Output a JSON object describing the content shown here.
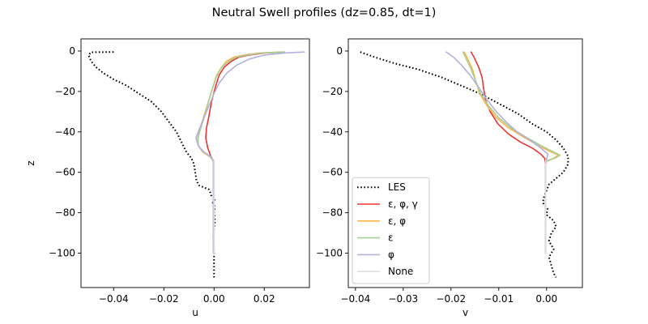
{
  "figure": {
    "title": "Neutral Swell profiles (dz=0.85, dt=1)"
  },
  "chart_data": [
    {
      "type": "line",
      "xlabel": "u",
      "ylabel": "z",
      "xlim": [
        -0.053,
        0.038
      ],
      "ylim": [
        -117,
        6
      ],
      "xticks": [
        -0.04,
        -0.02,
        0.0,
        0.02
      ],
      "xtick_labels": [
        "−0.04",
        "−0.02",
        "0.00",
        "0.02"
      ],
      "yticks": [
        0,
        -20,
        -40,
        -60,
        -80,
        -100
      ],
      "ytick_labels": [
        "0",
        "−20",
        "−40",
        "−60",
        "−80",
        "−100"
      ],
      "grid": false,
      "series": [
        {
          "name": "LES",
          "color": "#000000",
          "style": "dotted",
          "points": [
            [
              -0.04,
              -0.5
            ],
            [
              -0.049,
              -0.6
            ],
            [
              -0.05,
              -2
            ],
            [
              -0.049,
              -5
            ],
            [
              -0.047,
              -8
            ],
            [
              -0.044,
              -11
            ],
            [
              -0.04,
              -14
            ],
            [
              -0.035,
              -17
            ],
            [
              -0.03,
              -21
            ],
            [
              -0.025,
              -25
            ],
            [
              -0.021,
              -30
            ],
            [
              -0.018,
              -35
            ],
            [
              -0.015,
              -40
            ],
            [
              -0.013,
              -45
            ],
            [
              -0.011,
              -50
            ],
            [
              -0.009,
              -53
            ],
            [
              -0.008,
              -56
            ],
            [
              -0.0075,
              -60
            ],
            [
              -0.007,
              -64
            ],
            [
              -0.006,
              -66.5
            ],
            [
              -0.004,
              -67.5
            ],
            [
              -0.003,
              -68
            ],
            [
              -0.002,
              -68.5
            ],
            [
              -0.0015,
              -70
            ],
            [
              -0.001,
              -72
            ],
            [
              0.0005,
              -73
            ],
            [
              -0.0005,
              -75
            ],
            [
              0.0003,
              -77
            ],
            [
              0.0,
              -80
            ],
            [
              0.0004,
              -84
            ],
            [
              0.0,
              -88
            ],
            [
              -0.0003,
              -92
            ],
            [
              -0.0001,
              -96
            ],
            [
              0.0,
              -100
            ],
            [
              0.0,
              -104
            ],
            [
              0.0,
              -108
            ],
            [
              0.0,
              -112
            ]
          ]
        },
        {
          "name": "ε, φ, γ",
          "color": "#ee3333",
          "style": "solid",
          "points": [
            [
              0.028,
              -0.5
            ],
            [
              0.02,
              -1
            ],
            [
              0.014,
              -2
            ],
            [
              0.01,
              -3
            ],
            [
              0.007,
              -5
            ],
            [
              0.004,
              -8
            ],
            [
              0.002,
              -12
            ],
            [
              0.0005,
              -18
            ],
            [
              -0.001,
              -25
            ],
            [
              -0.002,
              -32
            ],
            [
              -0.003,
              -38
            ],
            [
              -0.0033,
              -43
            ],
            [
              -0.0025,
              -48
            ],
            [
              -0.0013,
              -52
            ],
            [
              0.0,
              -55
            ],
            [
              0.0,
              -65
            ],
            [
              0.0,
              -80
            ],
            [
              0.0,
              -100
            ]
          ]
        },
        {
          "name": "ε, φ",
          "color": "#fbb746",
          "style": "solid",
          "points": [
            [
              0.027,
              -0.5
            ],
            [
              0.018,
              -1
            ],
            [
              0.012,
              -2
            ],
            [
              0.008,
              -3
            ],
            [
              0.005,
              -5
            ],
            [
              0.003,
              -8
            ],
            [
              0.001,
              -12
            ],
            [
              -0.0005,
              -18
            ],
            [
              -0.002,
              -24
            ],
            [
              -0.004,
              -32
            ],
            [
              -0.0055,
              -38
            ],
            [
              -0.0065,
              -43
            ],
            [
              -0.0062,
              -47
            ],
            [
              -0.0045,
              -50
            ],
            [
              -0.002,
              -52
            ],
            [
              -0.0005,
              -54
            ],
            [
              -0.0002,
              -56
            ],
            [
              -0.0002,
              -70
            ],
            [
              -0.0002,
              -85
            ],
            [
              -0.0002,
              -100
            ]
          ]
        },
        {
          "name": "ε",
          "color": "#a5cf94",
          "style": "solid",
          "points": [
            [
              0.028,
              -0.5
            ],
            [
              0.019,
              -1
            ],
            [
              0.013,
              -2
            ],
            [
              0.009,
              -3
            ],
            [
              0.006,
              -5
            ],
            [
              0.003,
              -8
            ],
            [
              0.0012,
              -12
            ],
            [
              -0.0005,
              -18
            ],
            [
              -0.002,
              -24
            ],
            [
              -0.0035,
              -31
            ],
            [
              -0.005,
              -37
            ],
            [
              -0.0062,
              -42
            ],
            [
              -0.0065,
              -46
            ],
            [
              -0.005,
              -49
            ],
            [
              -0.003,
              -51
            ],
            [
              -0.001,
              -53
            ],
            [
              -0.0002,
              -55
            ],
            [
              -0.0002,
              -70
            ],
            [
              -0.0002,
              -85
            ],
            [
              -0.0002,
              -100
            ]
          ]
        },
        {
          "name": "φ",
          "color": "#b4b1dc",
          "style": "solid",
          "points": [
            [
              0.036,
              -0.5
            ],
            [
              0.028,
              -1
            ],
            [
              0.02,
              -2
            ],
            [
              0.014,
              -4
            ],
            [
              0.009,
              -7
            ],
            [
              0.005,
              -11
            ],
            [
              0.002,
              -16
            ],
            [
              0.0,
              -21
            ],
            [
              -0.002,
              -27
            ],
            [
              -0.004,
              -33
            ],
            [
              -0.006,
              -39
            ],
            [
              -0.0072,
              -43
            ],
            [
              -0.0062,
              -47
            ],
            [
              -0.004,
              -50
            ],
            [
              -0.0015,
              -52
            ],
            [
              -0.0003,
              -54
            ],
            [
              -0.0003,
              -70
            ],
            [
              -0.0003,
              -85
            ],
            [
              -0.0003,
              -100
            ]
          ]
        },
        {
          "name": "None",
          "color": "#dedede",
          "style": "solid",
          "points": [
            [
              0.0,
              -54
            ],
            [
              0.0,
              -70
            ],
            [
              0.0,
              -85
            ],
            [
              0.0,
              -100
            ]
          ]
        }
      ]
    },
    {
      "type": "line",
      "xlabel": "v",
      "ylabel": "",
      "xlim": [
        -0.0415,
        0.0075
      ],
      "ylim": [
        -117,
        6
      ],
      "xticks": [
        -0.04,
        -0.03,
        -0.02,
        -0.01,
        0.0
      ],
      "xtick_labels": [
        "−0.04",
        "−0.03",
        "−0.02",
        "−0.01",
        "0.00"
      ],
      "yticks": [
        0,
        -20,
        -40,
        -60,
        -80,
        -100
      ],
      "ytick_labels": [
        "0",
        "−20",
        "−40",
        "−60",
        "−80",
        "−100"
      ],
      "grid": false,
      "legend": {
        "position": "lower-left",
        "entries": [
          "LES",
          "ε, φ, γ",
          "ε, φ",
          "ε",
          "φ",
          "None"
        ]
      },
      "series": [
        {
          "name": "LES",
          "color": "#000000",
          "style": "dotted",
          "points": [
            [
              -0.039,
              -0.5
            ],
            [
              -0.036,
              -3
            ],
            [
              -0.032,
              -6
            ],
            [
              -0.027,
              -9
            ],
            [
              -0.022,
              -13
            ],
            [
              -0.018,
              -17
            ],
            [
              -0.014,
              -21
            ],
            [
              -0.01,
              -26
            ],
            [
              -0.006,
              -31
            ],
            [
              -0.003,
              -36
            ],
            [
              0.0,
              -40
            ],
            [
              0.002,
              -44
            ],
            [
              0.0035,
              -48
            ],
            [
              0.0045,
              -52
            ],
            [
              0.0045,
              -56
            ],
            [
              0.0035,
              -60
            ],
            [
              0.002,
              -63
            ],
            [
              0.0005,
              -66
            ],
            [
              0.0,
              -69
            ],
            [
              -0.0005,
              -72
            ],
            [
              -0.0008,
              -75
            ],
            [
              0.0002,
              -78
            ],
            [
              0.0,
              -81
            ],
            [
              0.0015,
              -84
            ],
            [
              0.002,
              -87
            ],
            [
              0.001,
              -90
            ],
            [
              0.0005,
              -94
            ],
            [
              0.0015,
              -98
            ],
            [
              0.0005,
              -102
            ],
            [
              0.001,
              -106
            ],
            [
              0.0015,
              -110
            ],
            [
              0.002,
              -112
            ]
          ]
        },
        {
          "name": "ε, φ, γ",
          "color": "#ee3333",
          "style": "solid",
          "points": [
            [
              -0.0158,
              -0.5
            ],
            [
              -0.0152,
              -3
            ],
            [
              -0.0142,
              -8
            ],
            [
              -0.0135,
              -13
            ],
            [
              -0.0132,
              -18
            ],
            [
              -0.0128,
              -24
            ],
            [
              -0.0118,
              -30
            ],
            [
              -0.0102,
              -36
            ],
            [
              -0.008,
              -41
            ],
            [
              -0.0055,
              -45
            ],
            [
              -0.003,
              -48
            ],
            [
              -0.0012,
              -51
            ],
            [
              -0.0004,
              -53
            ],
            [
              -0.0002,
              -56
            ],
            [
              -0.0002,
              -70
            ],
            [
              -0.0002,
              -85
            ],
            [
              -0.0002,
              -100
            ]
          ]
        },
        {
          "name": "ε, φ",
          "color": "#fbb746",
          "style": "solid",
          "points": [
            [
              -0.0172,
              -0.5
            ],
            [
              -0.0165,
              -4
            ],
            [
              -0.0155,
              -9
            ],
            [
              -0.0148,
              -15
            ],
            [
              -0.014,
              -21
            ],
            [
              -0.0125,
              -27
            ],
            [
              -0.0105,
              -33
            ],
            [
              -0.008,
              -38
            ],
            [
              -0.0045,
              -43
            ],
            [
              -0.0015,
              -47
            ],
            [
              0.001,
              -50
            ],
            [
              0.0025,
              -51.5
            ],
            [
              0.0015,
              -53
            ],
            [
              0.0,
              -54.5
            ],
            [
              -0.0002,
              -56
            ],
            [
              -0.0002,
              -70
            ],
            [
              -0.0002,
              -85
            ],
            [
              -0.0002,
              -100
            ]
          ]
        },
        {
          "name": "ε",
          "color": "#a5cf94",
          "style": "solid",
          "points": [
            [
              -0.0175,
              -0.5
            ],
            [
              -0.0168,
              -4
            ],
            [
              -0.0158,
              -9
            ],
            [
              -0.0148,
              -15
            ],
            [
              -0.0138,
              -21
            ],
            [
              -0.0122,
              -27
            ],
            [
              -0.01,
              -33
            ],
            [
              -0.0075,
              -38
            ],
            [
              -0.004,
              -43
            ],
            [
              -0.001,
              -47
            ],
            [
              0.0015,
              -50
            ],
            [
              0.0028,
              -51.5
            ],
            [
              0.0018,
              -53
            ],
            [
              0.0,
              -54.5
            ],
            [
              -0.0002,
              -56
            ],
            [
              -0.0002,
              -70
            ],
            [
              -0.0002,
              -85
            ],
            [
              -0.0002,
              -100
            ]
          ]
        },
        {
          "name": "φ",
          "color": "#b4b1dc",
          "style": "solid",
          "points": [
            [
              -0.021,
              -0.5
            ],
            [
              -0.0195,
              -3
            ],
            [
              -0.0178,
              -7
            ],
            [
              -0.016,
              -12
            ],
            [
              -0.0142,
              -18
            ],
            [
              -0.0125,
              -24
            ],
            [
              -0.0105,
              -30
            ],
            [
              -0.0085,
              -35
            ],
            [
              -0.0062,
              -40
            ],
            [
              -0.0035,
              -44
            ],
            [
              -0.0012,
              -48
            ],
            [
              0.0003,
              -51
            ],
            [
              0.0,
              -53.5
            ],
            [
              -0.0002,
              -56
            ],
            [
              -0.0002,
              -70
            ],
            [
              -0.0002,
              -85
            ],
            [
              -0.0002,
              -100
            ]
          ]
        },
        {
          "name": "None",
          "color": "#dedede",
          "style": "solid",
          "points": [
            [
              -0.0002,
              -54
            ],
            [
              -0.0002,
              -70
            ],
            [
              -0.0002,
              -85
            ],
            [
              -0.0002,
              -100
            ]
          ]
        }
      ]
    }
  ]
}
